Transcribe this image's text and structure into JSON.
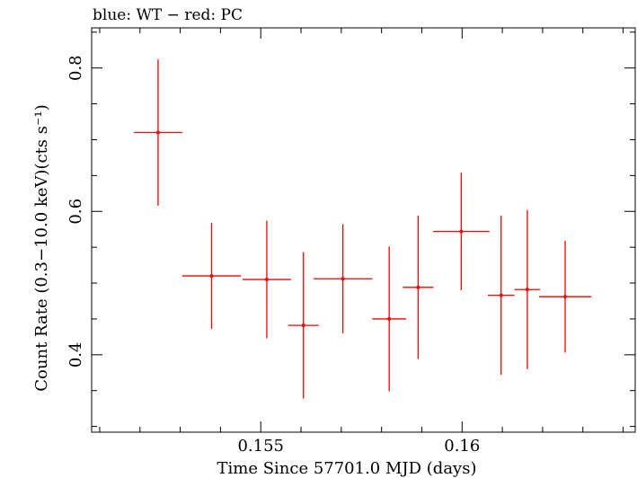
{
  "chart_data": {
    "type": "scatter",
    "title": "blue: WT − red: PC",
    "xlabel": "Time Since 57701.0 MJD (days)",
    "ylabel": "Count Rate (0.3−10.0 keV)(cts s⁻¹)",
    "xlim": [
      0.1508,
      0.1643
    ],
    "ylim": [
      0.292,
      0.856
    ],
    "x_ticks_major": [
      0.155,
      0.16
    ],
    "x_tick_labels": [
      "0.155",
      "0.16"
    ],
    "y_ticks_major": [
      0.4,
      0.6,
      0.8
    ],
    "y_tick_labels": [
      "0.4",
      "0.6",
      "0.8"
    ],
    "grid": false,
    "series": [
      {
        "name": "PC",
        "color": "#ff0000",
        "points": [
          {
            "x": 0.15245,
            "xerr": 0.0006,
            "y": 0.71,
            "yerr_lo": 0.102,
            "yerr_hi": 0.102
          },
          {
            "x": 0.15378,
            "xerr": 0.00073,
            "y": 0.51,
            "yerr_lo": 0.074,
            "yerr_hi": 0.074
          },
          {
            "x": 0.15515,
            "xerr": 0.0006,
            "y": 0.505,
            "yerr_lo": 0.082,
            "yerr_hi": 0.082
          },
          {
            "x": 0.15606,
            "xerr": 0.00038,
            "y": 0.441,
            "yerr_lo": 0.102,
            "yerr_hi": 0.102
          },
          {
            "x": 0.15704,
            "xerr": 0.00073,
            "y": 0.506,
            "yerr_lo": 0.076,
            "yerr_hi": 0.076
          },
          {
            "x": 0.15819,
            "xerr": 0.00042,
            "y": 0.45,
            "yerr_lo": 0.101,
            "yerr_hi": 0.101
          },
          {
            "x": 0.15891,
            "xerr": 0.00038,
            "y": 0.494,
            "yerr_lo": 0.1,
            "yerr_hi": 0.1
          },
          {
            "x": 0.15998,
            "xerr": 0.0007,
            "y": 0.572,
            "yerr_lo": 0.082,
            "yerr_hi": 0.082
          },
          {
            "x": 0.16097,
            "xerr": 0.00033,
            "y": 0.483,
            "yerr_lo": 0.111,
            "yerr_hi": 0.111
          },
          {
            "x": 0.16162,
            "xerr": 0.00032,
            "y": 0.491,
            "yerr_lo": 0.111,
            "yerr_hi": 0.111
          },
          {
            "x": 0.16256,
            "xerr": 0.00065,
            "y": 0.481,
            "yerr_lo": 0.078,
            "yerr_hi": 0.078
          }
        ]
      }
    ]
  }
}
